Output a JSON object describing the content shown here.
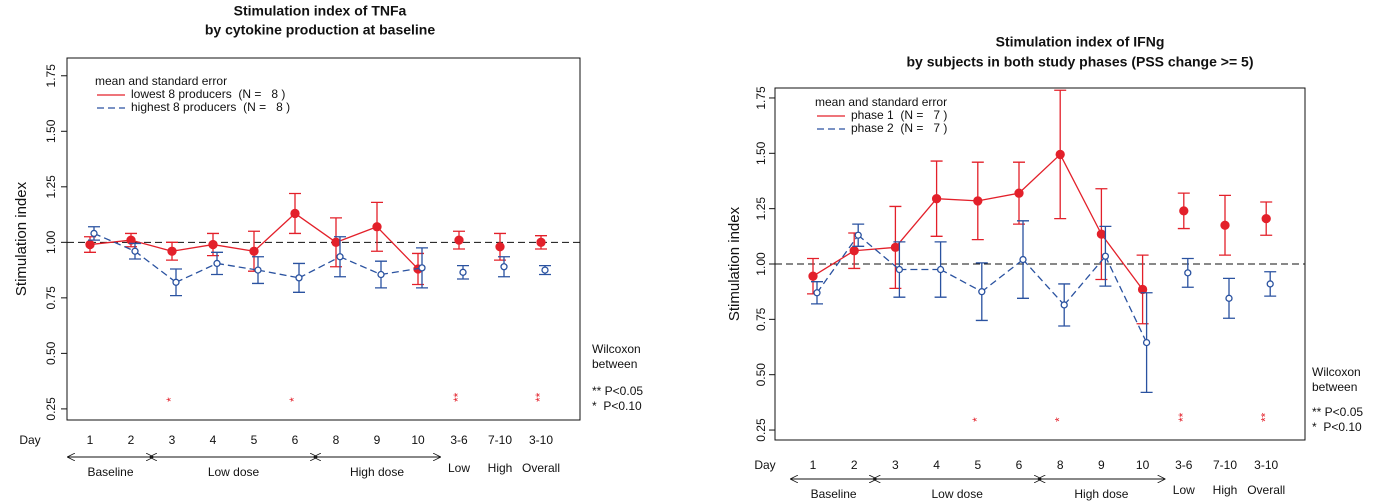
{
  "chart_data": [
    {
      "type": "line",
      "title": "Stimulation index of TNFa",
      "subtitle": "by cytokine production at baseline",
      "y_label": "Stimulation index",
      "x_label": "Day",
      "categories": [
        "1",
        "2",
        "3",
        "4",
        "5",
        "6",
        "8",
        "9",
        "10",
        "3-6",
        "7-10",
        "3-10"
      ],
      "groups": [
        {
          "label": "Baseline",
          "categories": [
            "1",
            "2"
          ],
          "arrow": true
        },
        {
          "label": "Low dose",
          "categories": [
            "3",
            "4",
            "5",
            "6"
          ],
          "arrow": true
        },
        {
          "label": "High dose",
          "categories": [
            "8",
            "9",
            "10"
          ],
          "arrow": true
        },
        {
          "label": "Low",
          "categories": [
            "3-6"
          ],
          "arrow": false
        },
        {
          "label": "High",
          "categories": [
            "7-10"
          ],
          "arrow": false
        },
        {
          "label": "Overall",
          "categories": [
            "3-10"
          ],
          "arrow": false
        }
      ],
      "ylim": [
        0.2,
        1.83
      ],
      "yticks": [
        0.25,
        {
          "value": 0.5,
          "label": "0.50"
        },
        0.75,
        {
          "value": 1,
          "label": "1.00"
        },
        1.25,
        {
          "value": 1.5,
          "label": "1.50"
        },
        1.75
      ],
      "reference_line": 1,
      "legend_title": "mean and standard error",
      "series": [
        {
          "name": "lowest 8 producers  (N =   8 )",
          "color": "#e3202a",
          "dashed": false,
          "marker": "filled",
          "values": [
            0.99,
            1.01,
            0.96,
            0.99,
            0.96,
            1.13,
            1.0,
            1.07,
            0.88,
            1.01,
            0.98,
            1.0
          ],
          "errors": [
            0.035,
            0.03,
            0.04,
            0.05,
            0.09,
            0.09,
            0.11,
            0.11,
            0.07,
            0.04,
            0.06,
            0.03
          ]
        },
        {
          "name": "highest 8 producers  (N =   8 )",
          "color": "#2a52a0",
          "dashed": true,
          "marker": "open",
          "values": [
            1.04,
            0.96,
            0.82,
            0.905,
            0.875,
            0.84,
            0.935,
            0.855,
            0.885,
            0.865,
            0.89,
            0.875
          ],
          "errors": [
            0.03,
            0.035,
            0.06,
            0.05,
            0.06,
            0.065,
            0.09,
            0.06,
            0.09,
            0.03,
            0.045,
            0.02
          ]
        }
      ],
      "significance": [
        null,
        null,
        "*",
        null,
        null,
        "*",
        null,
        null,
        null,
        "**",
        null,
        "**"
      ],
      "significance_legend": {
        "title": [
          "Wilcoxon",
          "between"
        ],
        "entries": [
          "** P<0.05",
          "*  P<0.10"
        ]
      }
    },
    {
      "type": "line",
      "title": "Stimulation index of IFNg",
      "subtitle": "by subjects in both study phases (PSS change >= 5)",
      "y_label": "Stimulation index",
      "x_label": "Day",
      "categories": [
        "1",
        "2",
        "3",
        "4",
        "5",
        "6",
        "8",
        "9",
        "10",
        "3-6",
        "7-10",
        "3-10"
      ],
      "groups": [
        {
          "label": "Baseline",
          "categories": [
            "1",
            "2"
          ],
          "arrow": true
        },
        {
          "label": "Low dose",
          "categories": [
            "3",
            "4",
            "5",
            "6"
          ],
          "arrow": true
        },
        {
          "label": "High dose",
          "categories": [
            "8",
            "9",
            "10"
          ],
          "arrow": true
        },
        {
          "label": "Low",
          "categories": [
            "3-6"
          ],
          "arrow": false
        },
        {
          "label": "High",
          "categories": [
            "7-10"
          ],
          "arrow": false
        },
        {
          "label": "Overall",
          "categories": [
            "3-10"
          ],
          "arrow": false
        }
      ],
      "ylim": [
        0.205,
        1.795
      ],
      "yticks": [
        0.25,
        {
          "value": 0.5,
          "label": "0.50"
        },
        0.75,
        {
          "value": 1,
          "label": "1.00"
        },
        1.25,
        {
          "value": 1.5,
          "label": "1.50"
        },
        1.75
      ],
      "reference_line": 1,
      "legend_title": "mean and standard error",
      "series": [
        {
          "name": "phase 1  (N =   7 )",
          "color": "#e3202a",
          "dashed": false,
          "marker": "filled",
          "values": [
            0.945,
            1.06,
            1.075,
            1.295,
            1.285,
            1.32,
            1.495,
            1.135,
            0.885,
            1.24,
            1.175,
            1.205
          ],
          "errors": [
            0.08,
            0.08,
            0.185,
            0.17,
            0.175,
            0.14,
            0.29,
            0.205,
            0.155,
            0.08,
            0.135,
            0.075
          ]
        },
        {
          "name": "phase 2  (N =   7 )",
          "color": "#2a52a0",
          "dashed": true,
          "marker": "open",
          "values": [
            0.87,
            1.13,
            0.975,
            0.975,
            0.875,
            1.02,
            0.815,
            1.035,
            0.645,
            0.96,
            0.845,
            0.91
          ],
          "errors": [
            0.05,
            0.05,
            0.125,
            0.125,
            0.13,
            0.175,
            0.095,
            0.135,
            0.225,
            0.065,
            0.09,
            0.055
          ]
        }
      ],
      "significance": [
        null,
        null,
        null,
        null,
        "*",
        null,
        "*",
        null,
        null,
        "**",
        null,
        "**"
      ],
      "significance_legend": {
        "title": [
          "Wilcoxon",
          "between"
        ],
        "entries": [
          "** P<0.05",
          "*  P<0.10"
        ]
      }
    }
  ]
}
